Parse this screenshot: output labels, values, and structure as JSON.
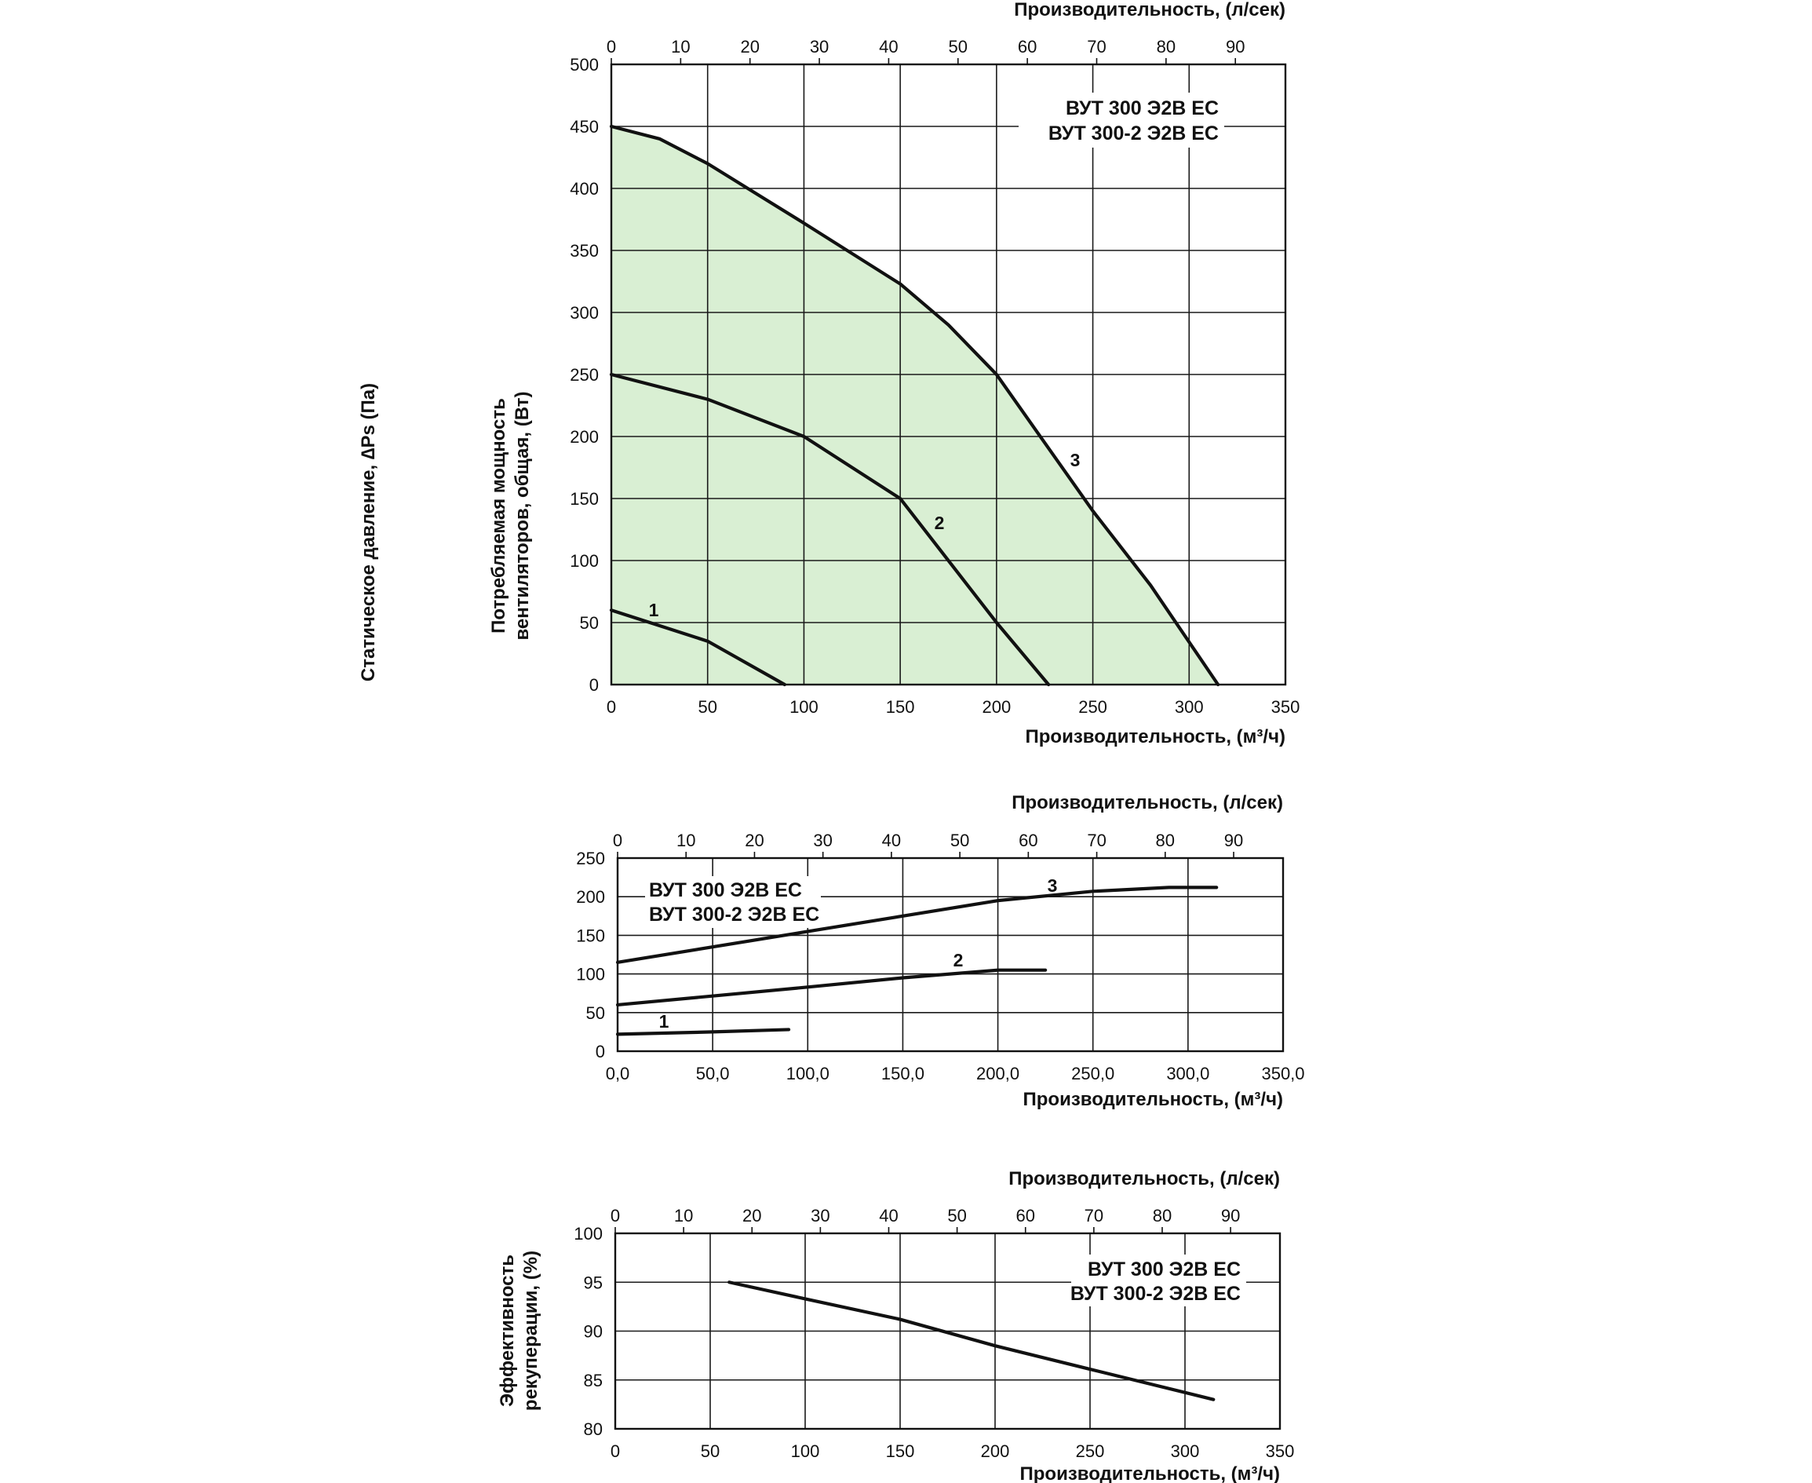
{
  "chart_data": [
    {
      "type": "line",
      "id": "pressure",
      "area_fill": "#d9efd3",
      "x_top_label": "Производительность, (л/сек)",
      "x_top_ticks": [
        "0",
        "10",
        "20",
        "30",
        "40",
        "50",
        "60",
        "70",
        "80",
        "90"
      ],
      "x_top_range": [
        0,
        97.22
      ],
      "xlabel": "Производительность, (м³/ч)",
      "x_ticks": [
        "0",
        "50",
        "100",
        "150",
        "200",
        "250",
        "300",
        "350"
      ],
      "xlim": [
        0,
        350
      ],
      "ylabel": "Статическое давление, ∆Ps (Па)",
      "y_ticks": [
        "0",
        "50",
        "100",
        "150",
        "200",
        "250",
        "300",
        "350",
        "400",
        "450",
        "500"
      ],
      "ylim": [
        0,
        500
      ],
      "models": [
        "ВУТ 300 Э2В ЕС",
        "ВУТ 300-2 Э2В ЕС"
      ],
      "legend_position": "top-right",
      "grid": true,
      "series": [
        {
          "name": "1",
          "x": [
            0,
            20,
            50,
            90
          ],
          "y": [
            60,
            50,
            35,
            0
          ]
        },
        {
          "name": "2",
          "x": [
            0,
            50,
            100,
            150,
            170,
            200,
            227
          ],
          "y": [
            250,
            230,
            200,
            150,
            110,
            50,
            0
          ]
        },
        {
          "name": "3",
          "x": [
            0,
            25,
            50,
            100,
            150,
            175,
            200,
            225,
            250,
            280,
            315
          ],
          "y": [
            450,
            440,
            420,
            372,
            323,
            290,
            250,
            195,
            140,
            80,
            0
          ]
        }
      ]
    },
    {
      "type": "line",
      "id": "power",
      "x_top_label": "Производительность, (л/сек)",
      "x_top_ticks": [
        "0",
        "10",
        "20",
        "30",
        "40",
        "50",
        "60",
        "70",
        "80",
        "90"
      ],
      "x_top_range": [
        0,
        97.22
      ],
      "xlabel": "Производительность, (м³/ч)",
      "x_ticks": [
        "0,0",
        "50,0",
        "100,0",
        "150,0",
        "200,0",
        "250,0",
        "300,0",
        "350,0"
      ],
      "xlim": [
        0,
        350
      ],
      "ylabel": [
        "Потребляемая мощность",
        "вентиляторов, общая, (Вт)"
      ],
      "y_ticks": [
        "0",
        "50",
        "100",
        "150",
        "200",
        "250"
      ],
      "ylim": [
        0,
        250
      ],
      "models": [
        "ВУТ 300 Э2В ЕС",
        "ВУТ 300-2 Э2В ЕС"
      ],
      "legend_position": "top-left",
      "grid": true,
      "series": [
        {
          "name": "1",
          "x": [
            0,
            50,
            90
          ],
          "y": [
            22,
            25,
            28
          ]
        },
        {
          "name": "2",
          "x": [
            0,
            100,
            150,
            200,
            225
          ],
          "y": [
            60,
            83,
            95,
            105,
            105
          ]
        },
        {
          "name": "3",
          "x": [
            0,
            100,
            200,
            250,
            290,
            315
          ],
          "y": [
            115,
            155,
            195,
            207,
            212,
            212
          ]
        }
      ]
    },
    {
      "type": "line",
      "id": "efficiency",
      "x_top_label": "Производительность, (л/сек)",
      "x_top_ticks": [
        "0",
        "10",
        "20",
        "30",
        "40",
        "50",
        "60",
        "70",
        "80",
        "90"
      ],
      "x_top_range": [
        0,
        97.22
      ],
      "xlabel": "Производительность, (м³/ч)",
      "x_ticks": [
        "0",
        "50",
        "100",
        "150",
        "200",
        "250",
        "300",
        "350"
      ],
      "xlim": [
        0,
        350
      ],
      "ylabel": [
        "Эффективность",
        "рекуперации, (%)"
      ],
      "y_ticks": [
        "80",
        "85",
        "90",
        "95",
        "100"
      ],
      "ylim": [
        80,
        100
      ],
      "models": [
        "ВУТ 300 Э2В ЕС",
        "ВУТ 300-2 Э2В ЕС"
      ],
      "legend_position": "top-right",
      "grid": true,
      "series": [
        {
          "name": "",
          "x": [
            60,
            100,
            150,
            200,
            250,
            315
          ],
          "y": [
            95,
            93.3,
            91.2,
            88.5,
            86.1,
            83
          ]
        }
      ]
    }
  ]
}
